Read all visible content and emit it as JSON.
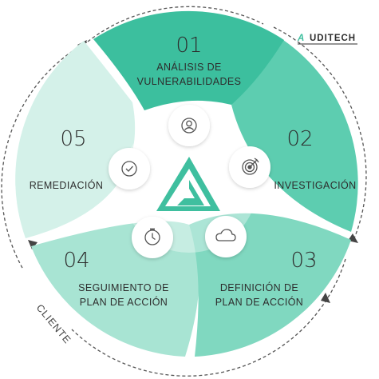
{
  "brand": {
    "prefix": "A",
    "rest": "UDITECH"
  },
  "client_label": "CLIENTE",
  "colors": {
    "s1": "#3cbf9e",
    "s2": "#5dcdb0",
    "s3": "#80d8c0",
    "s4": "#a8e4d3",
    "s5": "#d4f1e9",
    "logo": "#3fbf9f",
    "text": "#2d2d2d",
    "arrow": "#444444"
  },
  "steps": [
    {
      "number": "01",
      "label_lines": [
        "ANÁLISIS DE",
        "VULNERABILIDADES"
      ],
      "icon": "user-icon"
    },
    {
      "number": "02",
      "label_lines": [
        "INVESTIGACIÓN"
      ],
      "icon": "target-icon"
    },
    {
      "number": "03",
      "label_lines": [
        "DEFINICIÓN DE",
        "PLAN DE ACCIÓN"
      ],
      "icon": "cloud-icon"
    },
    {
      "number": "04",
      "label_lines": [
        "SEGUIMIENTO DE",
        "PLAN DE ACCIÓN"
      ],
      "icon": "clock-icon"
    },
    {
      "number": "05",
      "label_lines": [
        "REMEDIACIÓN"
      ],
      "icon": "check-icon"
    }
  ]
}
